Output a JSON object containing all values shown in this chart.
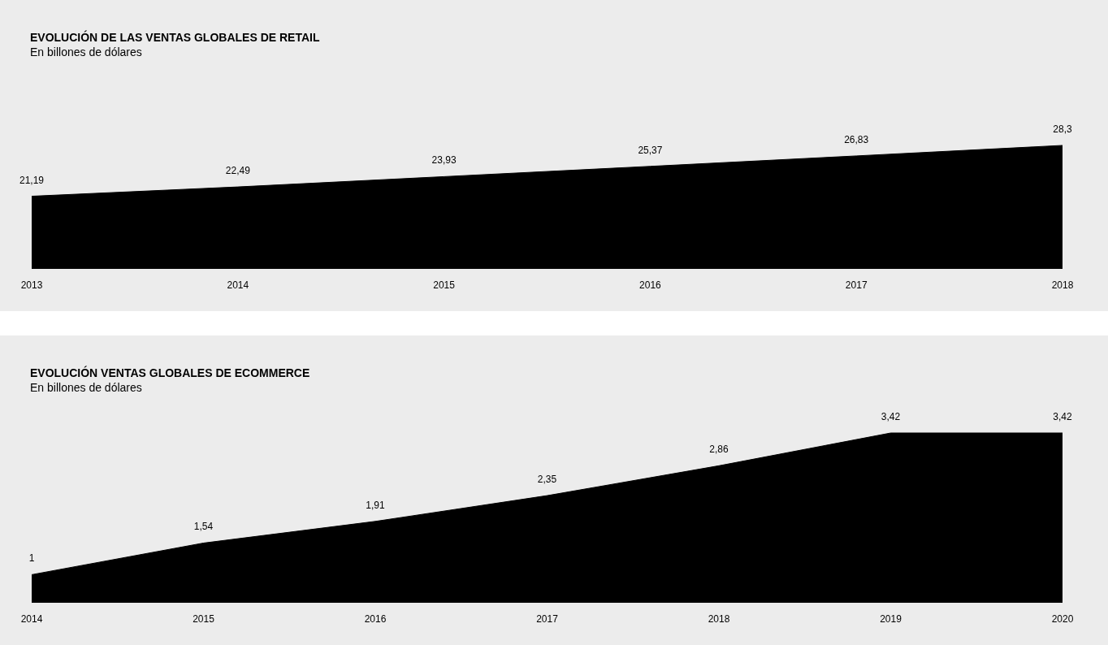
{
  "chart_data": [
    {
      "type": "area",
      "title": "EVOLUCIÓN DE LAS VENTAS GLOBALES DE RETAIL",
      "subtitle": "En billones de dólares",
      "categories": [
        "2013",
        "2014",
        "2015",
        "2016",
        "2017",
        "2018"
      ],
      "values": [
        21.19,
        22.49,
        23.93,
        25.37,
        26.83,
        28.3
      ],
      "value_labels": [
        "21,19",
        "22,49",
        "23,93",
        "25,37",
        "26,83",
        "28,3"
      ],
      "color": "#000000",
      "tick_labels": "x"
    },
    {
      "type": "area",
      "title": "EVOLUCIÓN VENTAS GLOBALES DE ECOMMERCE",
      "subtitle": "En billones de dólares",
      "categories": [
        "2014",
        "2015",
        "2016",
        "2017",
        "2018",
        "2019",
        "2020"
      ],
      "values": [
        1,
        1.54,
        1.91,
        2.35,
        2.86,
        3.42,
        3.42
      ],
      "value_labels": [
        "1",
        "1,54",
        "1,91",
        "2,35",
        "2,86",
        "3,42",
        "3,42"
      ],
      "color": "#000000",
      "tick_labels": "x"
    }
  ]
}
